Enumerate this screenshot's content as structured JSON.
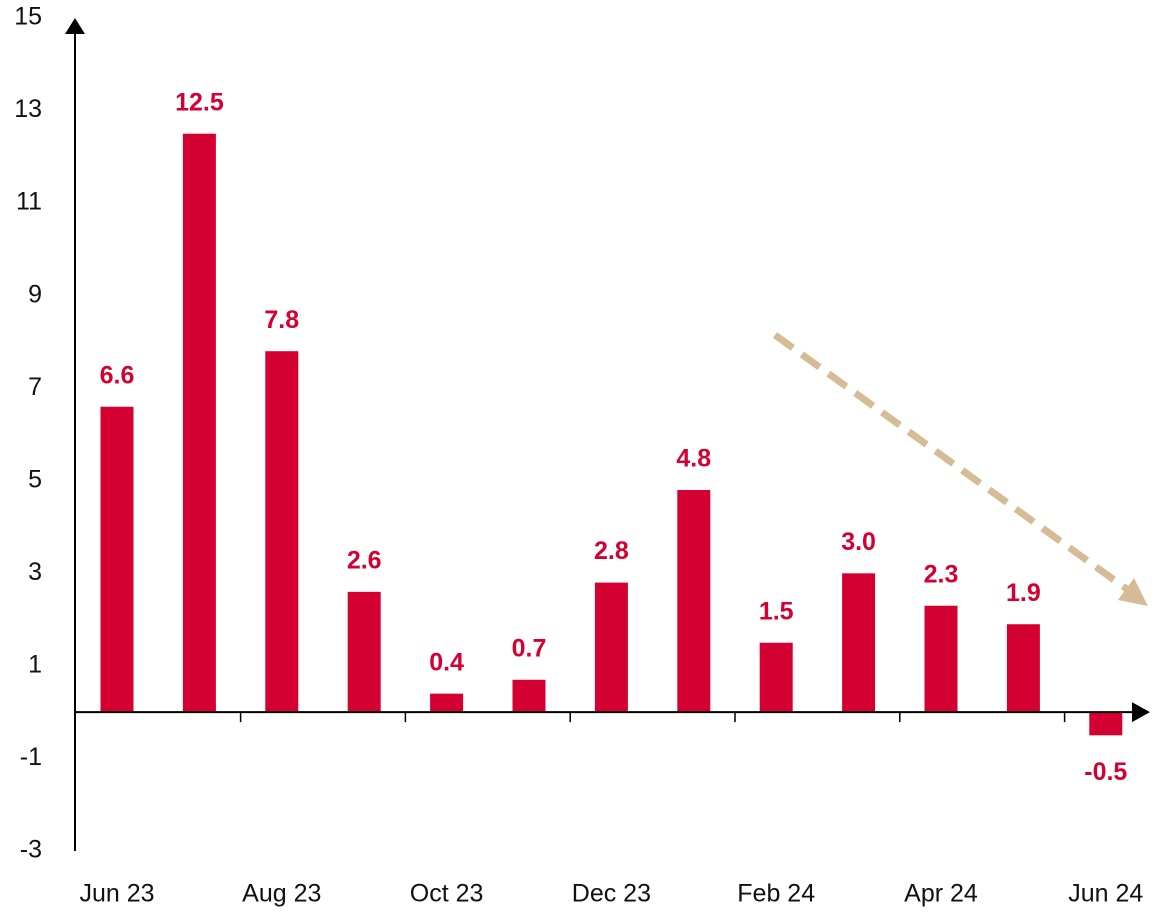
{
  "chart_data": {
    "type": "bar",
    "categories": [
      "Jun 23",
      null,
      "Aug 23",
      null,
      "Oct 23",
      null,
      "Dec 23",
      null,
      "Feb 24",
      null,
      "Apr 24",
      null,
      "Jun 24"
    ],
    "values": [
      6.6,
      12.5,
      7.8,
      2.6,
      0.4,
      0.7,
      2.8,
      4.8,
      1.5,
      3.0,
      2.3,
      1.9,
      -0.5
    ],
    "value_labels": [
      "6.6",
      "12.5",
      "7.8",
      "2.6",
      "0.4",
      "0.7",
      "2.8",
      "4.8",
      "1.5",
      "3.0",
      "2.3",
      "1.9",
      "-0.5"
    ],
    "color": "#d50032",
    "ylim": [
      -3,
      15
    ],
    "yticks": [
      -3,
      -1,
      1,
      3,
      5,
      7,
      9,
      11,
      13,
      15
    ],
    "grid": false
  }
}
